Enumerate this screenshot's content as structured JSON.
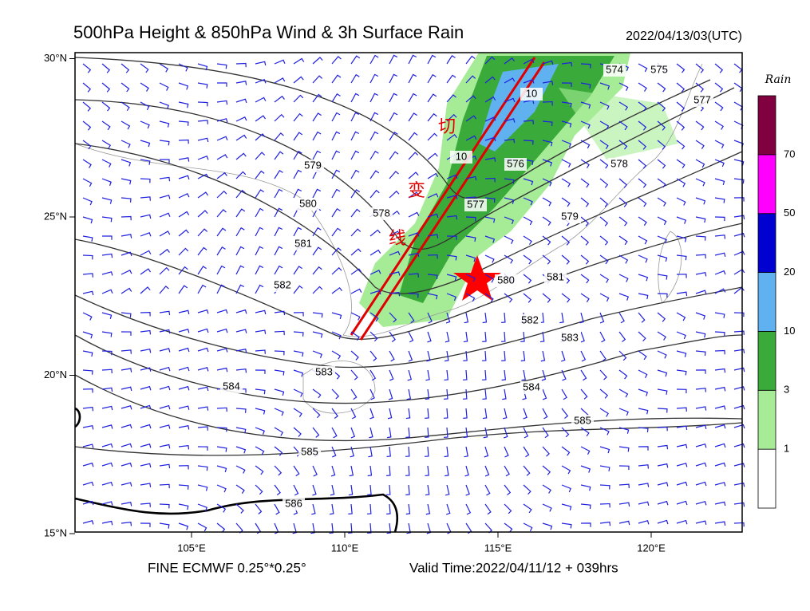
{
  "header": {
    "title": "500hPa Height & 850hPa Wind & 3h Surface Rain",
    "time": "2022/04/13/03(UTC)"
  },
  "map": {
    "lon_ticks": [
      {
        "value": 105,
        "label": "105°E"
      },
      {
        "value": 110,
        "label": "110°E"
      },
      {
        "value": 115,
        "label": "115°E"
      },
      {
        "value": 120,
        "label": "120°E"
      }
    ],
    "lat_ticks": [
      {
        "value": 30,
        "label": "30°N"
      },
      {
        "value": 25,
        "label": "25°N"
      },
      {
        "value": 20,
        "label": "20°N"
      },
      {
        "value": 15,
        "label": "15°N"
      }
    ],
    "contour_labels": [
      "574",
      "575",
      "577",
      "578",
      "579",
      "576",
      "577",
      "580",
      "581",
      "582",
      "583",
      "584",
      "585",
      "585",
      "586",
      "584",
      "583",
      "582",
      "581",
      "580",
      "579",
      "578",
      "10",
      "10"
    ],
    "annotations": [
      "切",
      "变",
      "线"
    ]
  },
  "colorbar": {
    "title": "Rain",
    "levels": [
      1,
      3,
      10,
      20,
      50,
      70
    ],
    "colors": [
      "#ffffff",
      "#a6ec96",
      "#3aab3a",
      "#5fb1f0",
      "#0000d0",
      "#ff00ff",
      "#800040"
    ]
  },
  "footer": {
    "left": "FINE ECMWF 0.25°*0.25°",
    "right": "Valid Time:2022/04/11/12 + 039hrs"
  }
}
